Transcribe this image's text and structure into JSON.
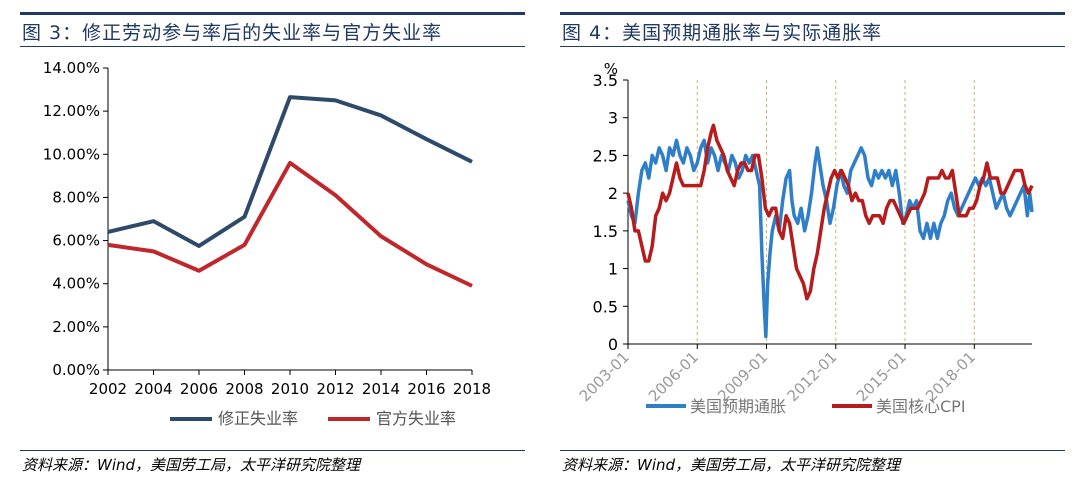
{
  "left": {
    "title": "图 3：修正劳动参与率后的失业率与官方失业率",
    "source": "资料来源：Wind，美国劳工局，太平洋研究院整理"
  },
  "right": {
    "title": "图 4：美国预期通胀率与实际通胀率",
    "source": "资料来源：Wind，美国劳工局，太平洋研究院整理"
  },
  "colors": {
    "blue": "#2e4a6b",
    "red": "#c0262c",
    "blue2": "#2f7fc8",
    "red2": "#b71c1c",
    "rule": "#1f3864"
  },
  "chart_data": [
    {
      "type": "line",
      "categories": [
        "2002",
        "2004",
        "2006",
        "2008",
        "2010",
        "2012",
        "2014",
        "2016",
        "2018"
      ],
      "series": [
        {
          "name": "修正失业率",
          "values": [
            6.4,
            6.9,
            5.75,
            7.1,
            12.65,
            12.5,
            11.8,
            10.7,
            9.65
          ]
        },
        {
          "name": "官方失业率",
          "values": [
            5.8,
            5.5,
            4.6,
            5.8,
            9.6,
            8.1,
            6.2,
            4.9,
            3.9
          ]
        }
      ],
      "yticks": [
        "0.00%",
        "2.00%",
        "4.00%",
        "6.00%",
        "8.00%",
        "10.00%",
        "12.00%",
        "14.00%"
      ],
      "ylim": [
        0,
        14
      ],
      "legend_position": "bottom"
    },
    {
      "type": "line",
      "ylabel": "%",
      "xticks": [
        "2003-01",
        "2006-01",
        "2009-01",
        "2012-01",
        "2015-01",
        "2018-01"
      ],
      "yticks": [
        "0",
        "0.5",
        "1",
        "1.5",
        "2",
        "2.5",
        "3",
        "3.5"
      ],
      "ylim": [
        0,
        3.5
      ],
      "xlim": [
        2003.0,
        2020.5
      ],
      "legend_position": "bottom",
      "series": [
        {
          "name": "美国预期通胀",
          "points": [
            [
              2003.0,
              1.9
            ],
            [
              2003.15,
              1.7
            ],
            [
              2003.3,
              1.6
            ],
            [
              2003.45,
              2.0
            ],
            [
              2003.6,
              2.3
            ],
            [
              2003.75,
              2.4
            ],
            [
              2003.9,
              2.2
            ],
            [
              2004.05,
              2.5
            ],
            [
              2004.2,
              2.4
            ],
            [
              2004.35,
              2.6
            ],
            [
              2004.5,
              2.5
            ],
            [
              2004.65,
              2.3
            ],
            [
              2004.8,
              2.6
            ],
            [
              2004.95,
              2.5
            ],
            [
              2005.1,
              2.7
            ],
            [
              2005.25,
              2.5
            ],
            [
              2005.4,
              2.4
            ],
            [
              2005.55,
              2.6
            ],
            [
              2005.7,
              2.5
            ],
            [
              2005.85,
              2.3
            ],
            [
              2006.0,
              2.4
            ],
            [
              2006.15,
              2.6
            ],
            [
              2006.3,
              2.7
            ],
            [
              2006.45,
              2.4
            ],
            [
              2006.6,
              2.6
            ],
            [
              2006.75,
              2.5
            ],
            [
              2006.9,
              2.3
            ],
            [
              2007.05,
              2.5
            ],
            [
              2007.2,
              2.4
            ],
            [
              2007.35,
              2.3
            ],
            [
              2007.5,
              2.5
            ],
            [
              2007.65,
              2.4
            ],
            [
              2007.8,
              2.2
            ],
            [
              2007.95,
              2.3
            ],
            [
              2008.1,
              2.5
            ],
            [
              2008.25,
              2.4
            ],
            [
              2008.4,
              2.5
            ],
            [
              2008.55,
              2.3
            ],
            [
              2008.7,
              2.1
            ],
            [
              2008.8,
              1.2
            ],
            [
              2008.9,
              0.5
            ],
            [
              2008.97,
              0.1
            ],
            [
              2009.05,
              0.8
            ],
            [
              2009.15,
              1.2
            ],
            [
              2009.25,
              1.5
            ],
            [
              2009.4,
              1.7
            ],
            [
              2009.55,
              1.5
            ],
            [
              2009.7,
              1.9
            ],
            [
              2009.85,
              2.2
            ],
            [
              2010.0,
              2.3
            ],
            [
              2010.1,
              1.9
            ],
            [
              2010.2,
              1.7
            ],
            [
              2010.35,
              1.6
            ],
            [
              2010.5,
              1.8
            ],
            [
              2010.65,
              1.5
            ],
            [
              2010.8,
              1.7
            ],
            [
              2010.95,
              2.0
            ],
            [
              2011.1,
              2.4
            ],
            [
              2011.2,
              2.6
            ],
            [
              2011.3,
              2.4
            ],
            [
              2011.45,
              2.1
            ],
            [
              2011.6,
              1.9
            ],
            [
              2011.75,
              1.6
            ],
            [
              2011.9,
              1.8
            ],
            [
              2012.05,
              2.1
            ],
            [
              2012.2,
              2.3
            ],
            [
              2012.35,
              2.1
            ],
            [
              2012.5,
              2.0
            ],
            [
              2012.65,
              2.3
            ],
            [
              2012.8,
              2.4
            ],
            [
              2012.95,
              2.5
            ],
            [
              2013.1,
              2.6
            ],
            [
              2013.25,
              2.5
            ],
            [
              2013.4,
              2.2
            ],
            [
              2013.55,
              2.1
            ],
            [
              2013.7,
              2.3
            ],
            [
              2013.85,
              2.2
            ],
            [
              2014.0,
              2.3
            ],
            [
              2014.15,
              2.2
            ],
            [
              2014.3,
              2.3
            ],
            [
              2014.45,
              2.1
            ],
            [
              2014.6,
              2.3
            ],
            [
              2014.75,
              2.0
            ],
            [
              2014.9,
              1.6
            ],
            [
              2015.05,
              1.7
            ],
            [
              2015.2,
              1.9
            ],
            [
              2015.35,
              1.8
            ],
            [
              2015.5,
              1.9
            ],
            [
              2015.65,
              1.5
            ],
            [
              2015.8,
              1.4
            ],
            [
              2015.95,
              1.6
            ],
            [
              2016.1,
              1.4
            ],
            [
              2016.25,
              1.6
            ],
            [
              2016.4,
              1.4
            ],
            [
              2016.55,
              1.6
            ],
            [
              2016.7,
              1.7
            ],
            [
              2016.85,
              1.9
            ],
            [
              2017.0,
              2.0
            ],
            [
              2017.15,
              1.8
            ],
            [
              2017.3,
              1.7
            ],
            [
              2017.45,
              1.8
            ],
            [
              2017.6,
              1.9
            ],
            [
              2017.75,
              2.0
            ],
            [
              2017.9,
              2.1
            ],
            [
              2018.05,
              2.2
            ],
            [
              2018.2,
              2.1
            ],
            [
              2018.35,
              2.2
            ],
            [
              2018.5,
              2.1
            ],
            [
              2018.65,
              2.2
            ],
            [
              2018.8,
              2.0
            ],
            [
              2018.95,
              1.8
            ],
            [
              2019.1,
              1.9
            ],
            [
              2019.25,
              2.0
            ],
            [
              2019.4,
              1.8
            ],
            [
              2019.55,
              1.7
            ],
            [
              2019.7,
              1.8
            ],
            [
              2019.85,
              1.9
            ],
            [
              2020.0,
              2.0
            ],
            [
              2020.15,
              2.1
            ],
            [
              2020.3,
              1.7
            ],
            [
              2020.4,
              2.0
            ],
            [
              2020.5,
              1.75
            ]
          ]
        },
        {
          "name": "美国核心CPI",
          "points": [
            [
              2003.0,
              2.0
            ],
            [
              2003.15,
              1.8
            ],
            [
              2003.3,
              1.5
            ],
            [
              2003.45,
              1.5
            ],
            [
              2003.6,
              1.3
            ],
            [
              2003.75,
              1.1
            ],
            [
              2003.9,
              1.1
            ],
            [
              2004.05,
              1.3
            ],
            [
              2004.2,
              1.7
            ],
            [
              2004.35,
              1.8
            ],
            [
              2004.5,
              2.0
            ],
            [
              2004.65,
              1.9
            ],
            [
              2004.8,
              2.0
            ],
            [
              2004.95,
              2.2
            ],
            [
              2005.1,
              2.4
            ],
            [
              2005.25,
              2.2
            ],
            [
              2005.4,
              2.1
            ],
            [
              2005.55,
              2.1
            ],
            [
              2005.7,
              2.1
            ],
            [
              2005.85,
              2.1
            ],
            [
              2006.0,
              2.1
            ],
            [
              2006.15,
              2.1
            ],
            [
              2006.3,
              2.3
            ],
            [
              2006.45,
              2.6
            ],
            [
              2006.6,
              2.8
            ],
            [
              2006.7,
              2.9
            ],
            [
              2006.85,
              2.7
            ],
            [
              2007.0,
              2.6
            ],
            [
              2007.15,
              2.5
            ],
            [
              2007.3,
              2.3
            ],
            [
              2007.45,
              2.2
            ],
            [
              2007.6,
              2.1
            ],
            [
              2007.75,
              2.3
            ],
            [
              2007.9,
              2.4
            ],
            [
              2008.05,
              2.4
            ],
            [
              2008.2,
              2.3
            ],
            [
              2008.35,
              2.3
            ],
            [
              2008.5,
              2.5
            ],
            [
              2008.65,
              2.5
            ],
            [
              2008.8,
              2.2
            ],
            [
              2008.95,
              1.8
            ],
            [
              2009.1,
              1.7
            ],
            [
              2009.25,
              1.8
            ],
            [
              2009.4,
              1.8
            ],
            [
              2009.55,
              1.5
            ],
            [
              2009.7,
              1.4
            ],
            [
              2009.85,
              1.7
            ],
            [
              2010.0,
              1.6
            ],
            [
              2010.15,
              1.3
            ],
            [
              2010.3,
              1.0
            ],
            [
              2010.45,
              0.9
            ],
            [
              2010.6,
              0.8
            ],
            [
              2010.75,
              0.6
            ],
            [
              2010.9,
              0.7
            ],
            [
              2011.05,
              1.0
            ],
            [
              2011.2,
              1.2
            ],
            [
              2011.35,
              1.5
            ],
            [
              2011.5,
              1.8
            ],
            [
              2011.65,
              2.0
            ],
            [
              2011.8,
              2.2
            ],
            [
              2011.95,
              2.3
            ],
            [
              2012.1,
              2.2
            ],
            [
              2012.25,
              2.3
            ],
            [
              2012.4,
              2.2
            ],
            [
              2012.55,
              2.1
            ],
            [
              2012.7,
              1.9
            ],
            [
              2012.85,
              2.0
            ],
            [
              2013.0,
              1.9
            ],
            [
              2013.15,
              1.9
            ],
            [
              2013.3,
              1.7
            ],
            [
              2013.45,
              1.6
            ],
            [
              2013.6,
              1.7
            ],
            [
              2013.75,
              1.7
            ],
            [
              2013.9,
              1.7
            ],
            [
              2014.05,
              1.6
            ],
            [
              2014.2,
              1.8
            ],
            [
              2014.35,
              1.9
            ],
            [
              2014.5,
              1.9
            ],
            [
              2014.65,
              1.8
            ],
            [
              2014.8,
              1.7
            ],
            [
              2014.95,
              1.6
            ],
            [
              2015.1,
              1.7
            ],
            [
              2015.25,
              1.8
            ],
            [
              2015.4,
              1.8
            ],
            [
              2015.55,
              1.8
            ],
            [
              2015.7,
              1.9
            ],
            [
              2015.85,
              2.0
            ],
            [
              2016.0,
              2.2
            ],
            [
              2016.15,
              2.2
            ],
            [
              2016.3,
              2.2
            ],
            [
              2016.45,
              2.2
            ],
            [
              2016.6,
              2.3
            ],
            [
              2016.75,
              2.2
            ],
            [
              2016.9,
              2.2
            ],
            [
              2017.05,
              2.3
            ],
            [
              2017.2,
              2.0
            ],
            [
              2017.35,
              1.7
            ],
            [
              2017.5,
              1.7
            ],
            [
              2017.65,
              1.7
            ],
            [
              2017.8,
              1.8
            ],
            [
              2017.95,
              1.8
            ],
            [
              2018.1,
              1.9
            ],
            [
              2018.25,
              2.1
            ],
            [
              2018.4,
              2.2
            ],
            [
              2018.55,
              2.4
            ],
            [
              2018.7,
              2.2
            ],
            [
              2018.85,
              2.2
            ],
            [
              2019.0,
              2.2
            ],
            [
              2019.15,
              2.0
            ],
            [
              2019.3,
              2.0
            ],
            [
              2019.45,
              2.1
            ],
            [
              2019.6,
              2.2
            ],
            [
              2019.75,
              2.3
            ],
            [
              2019.9,
              2.3
            ],
            [
              2020.05,
              2.3
            ],
            [
              2020.2,
              2.1
            ],
            [
              2020.35,
              2.0
            ],
            [
              2020.5,
              2.1
            ]
          ]
        }
      ]
    }
  ]
}
